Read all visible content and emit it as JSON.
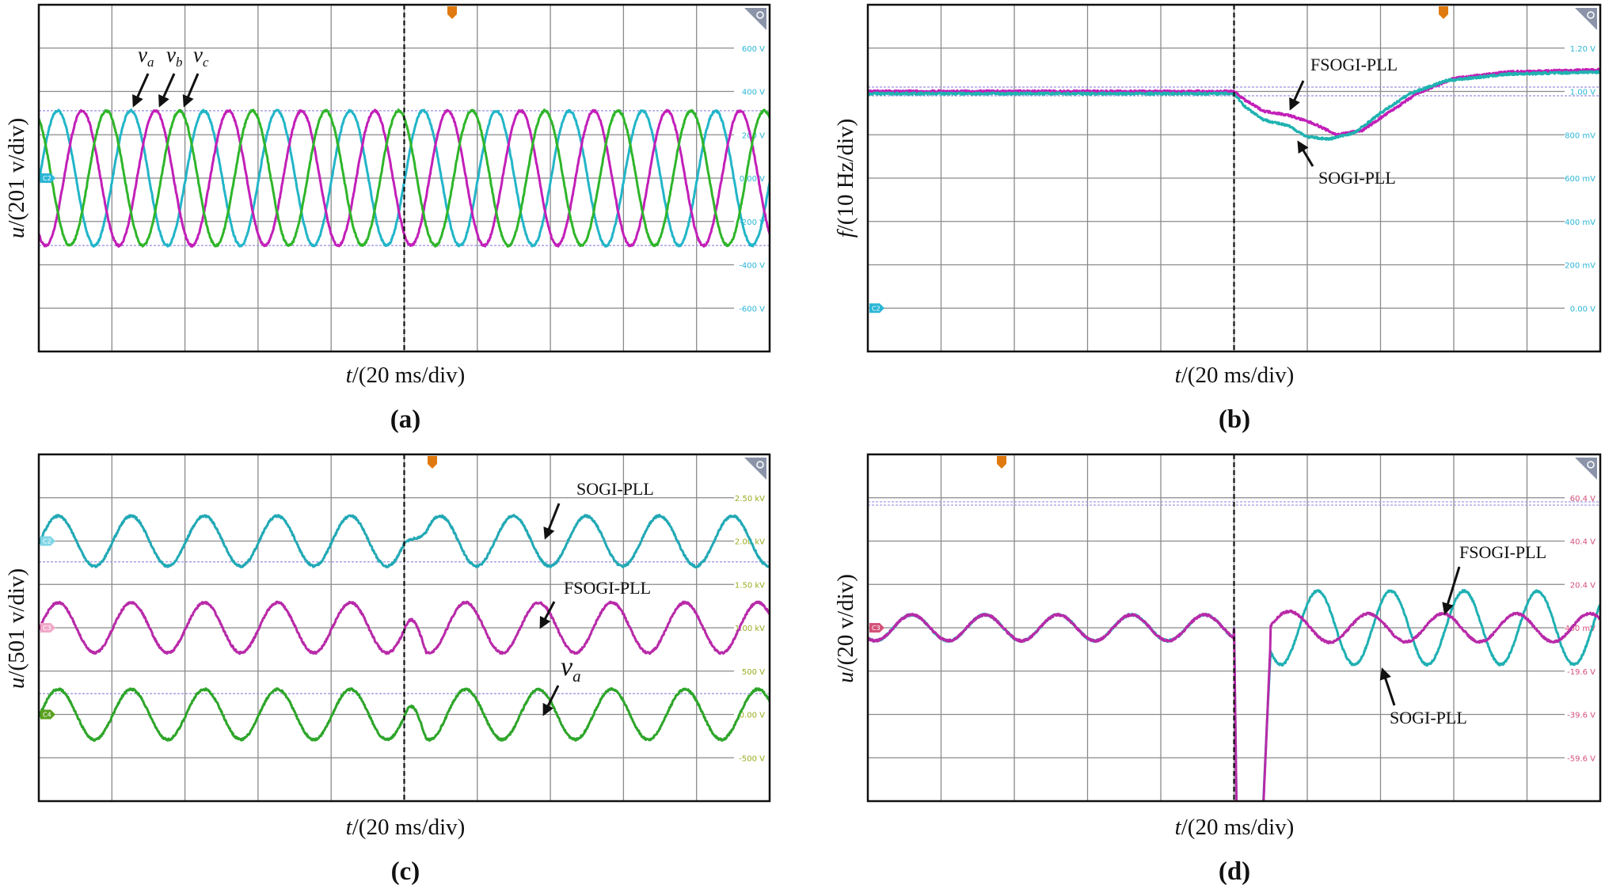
{
  "chart_data": [
    {
      "type": "line",
      "caption": "(a)",
      "ylabel_var": "u",
      "ylabel_unit": "/(201 v/div)",
      "xlabel_var": "t",
      "xlabel_unit": "/(20 ms/div)",
      "x_unit": "ms",
      "xlim": [
        -100,
        100
      ],
      "ylim": [
        -800,
        800
      ],
      "y_ticks": [
        "600 V",
        "400 V",
        "200 V",
        "0.00 V",
        "-200 V",
        "-400 V",
        "-600 V"
      ],
      "tick_color": "#2bb6d6",
      "channel_tags": [
        {
          "label": "C2",
          "color": "#2bb6d6",
          "level": 0
        }
      ],
      "cursor_levels": [
        311,
        -311
      ],
      "trigger_ms": 0,
      "series": [
        {
          "name": "va",
          "color": "#22b5c8",
          "type": "sine",
          "amplitude": 311,
          "offset": 0,
          "frequency_hz": 50,
          "peak_ms": 5.2
        },
        {
          "name": "vb",
          "color": "#c21fb8",
          "type": "sine",
          "amplitude": 311,
          "offset": 0,
          "frequency_hz": 50,
          "peak_ms": 11.9
        },
        {
          "name": "vc",
          "color": "#2fb52a",
          "type": "sine",
          "amplitude": 311,
          "offset": 0,
          "frequency_hz": 50,
          "peak_ms": 18.5
        }
      ],
      "annotations": [
        {
          "var": "v",
          "sub": "a"
        },
        {
          "var": "v",
          "sub": "b"
        },
        {
          "var": "v",
          "sub": "c"
        }
      ]
    },
    {
      "type": "line",
      "caption": "(b)",
      "ylabel_var": "f",
      "ylabel_unit": "/(10 Hz/div)",
      "xlabel_var": "t",
      "xlabel_unit": "/(20 ms/div)",
      "x_unit": "ms",
      "xlim": [
        -100,
        100
      ],
      "ylim": [
        -0.2,
        1.4
      ],
      "y_ticks": [
        "1.20 V",
        "1.00 V",
        "800 mV",
        "600 mV",
        "400 mV",
        "200 mV",
        "0.00 V"
      ],
      "tick_color": "#2bb6d6",
      "channel_tags": [
        {
          "label": "C2",
          "color": "#2bb6d6",
          "level": 0
        }
      ],
      "cursor_levels": [
        1.02,
        0.98
      ],
      "trigger_ms": 0,
      "series": [
        {
          "name": "FSOGI-PLL",
          "color": "#c21fb8",
          "type": "points",
          "x": [
            -100,
            0,
            3,
            8,
            15,
            22,
            28,
            35,
            42,
            50,
            60,
            75,
            100
          ],
          "y": [
            1.0,
            1.0,
            0.96,
            0.91,
            0.89,
            0.85,
            0.8,
            0.82,
            0.9,
            0.99,
            1.06,
            1.09,
            1.1
          ]
        },
        {
          "name": "SOGI-PLL",
          "color": "#1fb3b0",
          "type": "points",
          "x": [
            -100,
            0,
            3,
            8,
            15,
            20,
            26,
            33,
            40,
            48,
            58,
            75,
            100
          ],
          "y": [
            0.99,
            0.99,
            0.93,
            0.87,
            0.84,
            0.79,
            0.78,
            0.81,
            0.9,
            0.99,
            1.05,
            1.08,
            1.09
          ]
        }
      ],
      "annotations": [
        {
          "text": "FSOGI-PLL"
        },
        {
          "text": "SOGI-PLL"
        }
      ]
    },
    {
      "type": "line",
      "caption": "(c)",
      "ylabel_var": "u",
      "ylabel_unit": "/(501 v/div)",
      "xlabel_var": "t",
      "xlabel_unit": "/(20 ms/div)",
      "x_unit": "ms",
      "xlim": [
        -100,
        100
      ],
      "ylim": [
        -1000,
        3000
      ],
      "y_ticks": [
        "2.50 kV",
        "2.00 kV",
        "1.50 kV",
        "1.00 kV",
        "500 V",
        "0.00 V",
        "-500 V"
      ],
      "tick_color": "#9aab1e",
      "channel_tags": [
        {
          "label": "C2",
          "color": "#7fd6e6",
          "level": 2000
        },
        {
          "label": "C3",
          "color": "#f0a8c8",
          "level": 1000
        },
        {
          "label": "C4",
          "color": "#5aa01e",
          "level": 0
        }
      ],
      "cursor_levels": [
        1760,
        240
      ],
      "trigger_ms": 0,
      "series": [
        {
          "name": "SOGI-PLL",
          "color": "#22a9b5",
          "type": "sine",
          "amplitude": 290,
          "offset": 2000,
          "frequency_hz": 50,
          "peak_ms": 5.3,
          "peak_ms_after_trigger": 9.8
        },
        {
          "name": "FSOGI-PLL",
          "color": "#b82aa8",
          "type": "sine",
          "amplitude": 290,
          "offset": 1000,
          "frequency_hz": 50,
          "peak_ms": 5.3,
          "peak_ms_after_trigger": 16.8
        },
        {
          "name": "va",
          "color": "#2ea52a",
          "type": "sine",
          "amplitude": 290,
          "offset": 0,
          "frequency_hz": 50,
          "peak_ms": 5.3,
          "peak_ms_after_trigger": 16.8
        }
      ],
      "annotations": [
        {
          "text": "SOGI-PLL"
        },
        {
          "text": "FSOGI-PLL"
        },
        {
          "var": "v",
          "sub": "a"
        }
      ]
    },
    {
      "type": "line",
      "caption": "(d)",
      "ylabel_var": "u",
      "ylabel_unit": "/(20 v/div)",
      "xlabel_var": "t",
      "xlabel_unit": "/(20 ms/div)",
      "x_unit": "ms",
      "xlim": [
        -100,
        100
      ],
      "ylim": [
        -79.6,
        80.4
      ],
      "y_ticks": [
        "60.4 V",
        "40.4 V",
        "20.4 V",
        "400 mV",
        "-19.6 V",
        "-39.6 V",
        "-59.6 V"
      ],
      "tick_color": "#d4517a",
      "channel_tags": [
        {
          "label": "C3",
          "color": "#d4517a",
          "level": 0.4
        }
      ],
      "cursor_levels": [
        58.5,
        57.0
      ],
      "trigger_ms": 0,
      "series": [
        {
          "name": "SOGI-PLL",
          "color": "#1fb0b3",
          "type": "sine",
          "amplitude": 6,
          "offset": 0.4,
          "frequency_hz": 50,
          "peak_ms": 12,
          "amplitude_after_trigger": 17,
          "peak_ms_after_trigger": 2.8,
          "transient_min": -120
        },
        {
          "name": "FSOGI-PLL",
          "color": "#b82aa8",
          "type": "sine",
          "amplitude": 6,
          "offset": 0.4,
          "frequency_hz": 50,
          "peak_ms": 12,
          "amplitude_after_trigger": 6.5,
          "peak_ms_after_trigger": 17.2,
          "transient_min": -120
        }
      ],
      "annotations": [
        {
          "text": "FSOGI-PLL"
        },
        {
          "text": "SOGI-PLL"
        }
      ]
    }
  ]
}
